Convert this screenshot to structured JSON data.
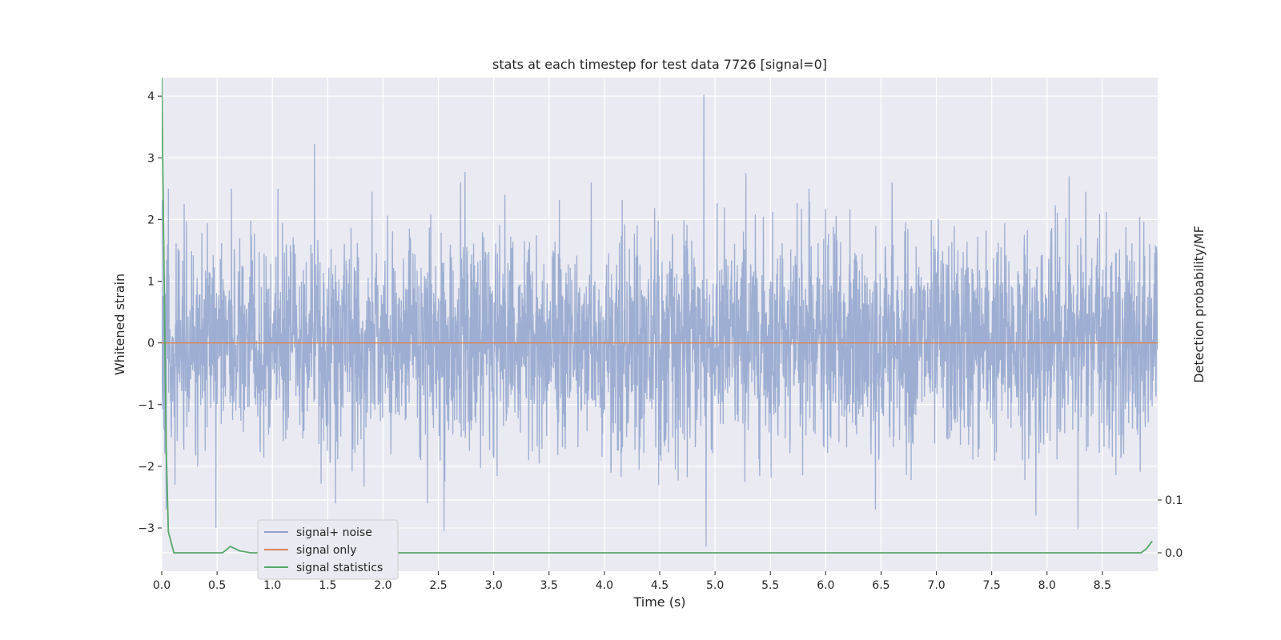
{
  "chart_data": {
    "type": "line",
    "title": "stats at each timestep for test data 7726 [signal=0]",
    "xlabel": "Time (s)",
    "ylabel": "Whitened strain",
    "y2label": "Detection probability/MF",
    "xlim": [
      0,
      9.0
    ],
    "ylim": [
      -3.7,
      4.3
    ],
    "y2lim": [
      -0.0349,
      0.9
    ],
    "xticks": [
      "0.0",
      "0.5",
      "1.0",
      "1.5",
      "2.0",
      "2.5",
      "3.0",
      "3.5",
      "4.0",
      "4.5",
      "5.0",
      "5.5",
      "6.0",
      "6.5",
      "7.0",
      "7.5",
      "8.0",
      "8.5"
    ],
    "yticks": [
      -3,
      -2,
      -1,
      0,
      1,
      2,
      3,
      4
    ],
    "y2ticks": [
      0.0,
      0.1
    ],
    "y2ticklabels": [
      "0.0",
      "0.1"
    ],
    "grid": true,
    "legend_position": "lower-left",
    "series": [
      {
        "name": "signal+ noise",
        "axis": "left",
        "color": "#8fa3cc",
        "noise_sigma": 0.85,
        "spikes": [
          {
            "t": 0.02,
            "v": -1.4
          },
          {
            "t": 0.04,
            "v": -2.7
          },
          {
            "t": 0.06,
            "v": 2.5
          },
          {
            "t": 0.12,
            "v": -2.3
          },
          {
            "t": 0.49,
            "v": -3.0
          },
          {
            "t": 0.63,
            "v": 2.5
          },
          {
            "t": 1.05,
            "v": 2.5
          },
          {
            "t": 1.38,
            "v": 3.22
          },
          {
            "t": 1.57,
            "v": -2.6
          },
          {
            "t": 1.9,
            "v": 2.45
          },
          {
            "t": 2.4,
            "v": -2.6
          },
          {
            "t": 2.55,
            "v": -3.05
          },
          {
            "t": 2.7,
            "v": 2.6
          },
          {
            "t": 2.74,
            "v": 2.77
          },
          {
            "t": 3.1,
            "v": 2.4
          },
          {
            "t": 3.88,
            "v": 2.6
          },
          {
            "t": 4.9,
            "v": 4.02
          },
          {
            "t": 4.92,
            "v": -3.3
          },
          {
            "t": 5.28,
            "v": 2.75
          },
          {
            "t": 5.85,
            "v": 2.5
          },
          {
            "t": 6.45,
            "v": -2.7
          },
          {
            "t": 6.6,
            "v": 2.6
          },
          {
            "t": 7.9,
            "v": -2.8
          },
          {
            "t": 8.2,
            "v": 2.7
          },
          {
            "t": 8.28,
            "v": -3.02
          },
          {
            "t": 8.35,
            "v": 2.45
          }
        ]
      },
      {
        "name": "signal only",
        "axis": "left",
        "color": "#dd8452",
        "x": [
          0,
          9.0
        ],
        "y": [
          0,
          0
        ]
      },
      {
        "name": "signal statistics",
        "axis": "right",
        "color": "#55a868",
        "x": [
          0.0,
          0.02,
          0.04,
          0.06,
          0.11,
          0.2,
          0.3,
          0.4,
          0.55,
          0.62,
          0.7,
          0.8,
          1.0,
          2.0,
          3.0,
          4.0,
          5.0,
          6.0,
          7.0,
          8.0,
          8.85,
          8.9,
          8.95
        ],
        "y": [
          0.9,
          0.55,
          0.2,
          0.04,
          0.0,
          0.0,
          0.0,
          0.0,
          0.0,
          0.012,
          0.004,
          0.0,
          0.0,
          0.0,
          0.0,
          0.0,
          0.0,
          0.0,
          0.0,
          0.0,
          0.0,
          0.008,
          0.022
        ]
      }
    ]
  }
}
